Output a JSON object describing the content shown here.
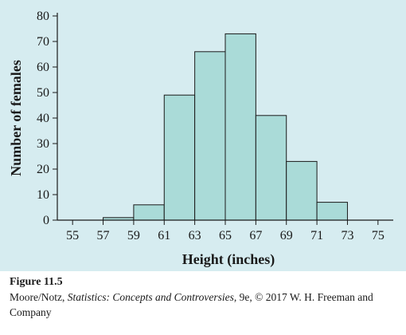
{
  "chart_data": {
    "type": "bar",
    "bin_edges": [
      55,
      57,
      59,
      61,
      63,
      65,
      67,
      69,
      71,
      73,
      75
    ],
    "values": [
      0,
      1,
      6,
      49,
      66,
      73,
      41,
      23,
      7,
      0
    ],
    "x_ticks": [
      55,
      57,
      59,
      61,
      63,
      65,
      67,
      69,
      71,
      73,
      75
    ],
    "y_ticks": [
      0,
      10,
      20,
      30,
      40,
      50,
      60,
      70,
      80
    ],
    "xlabel": "Height (inches)",
    "ylabel": "Number of females",
    "xlim": [
      54,
      76
    ],
    "ylim": [
      0,
      80
    ],
    "grid": false,
    "bar_color": "#aadbd8",
    "background_color": "#d6ecf0"
  },
  "caption": {
    "figure_label": "Figure 11.5",
    "credit_prefix": "Moore/Notz, ",
    "credit_title": "Statistics: Concepts and Controversies",
    "credit_suffix": ", 9e, © 2017 W. H. Freeman and Company"
  }
}
